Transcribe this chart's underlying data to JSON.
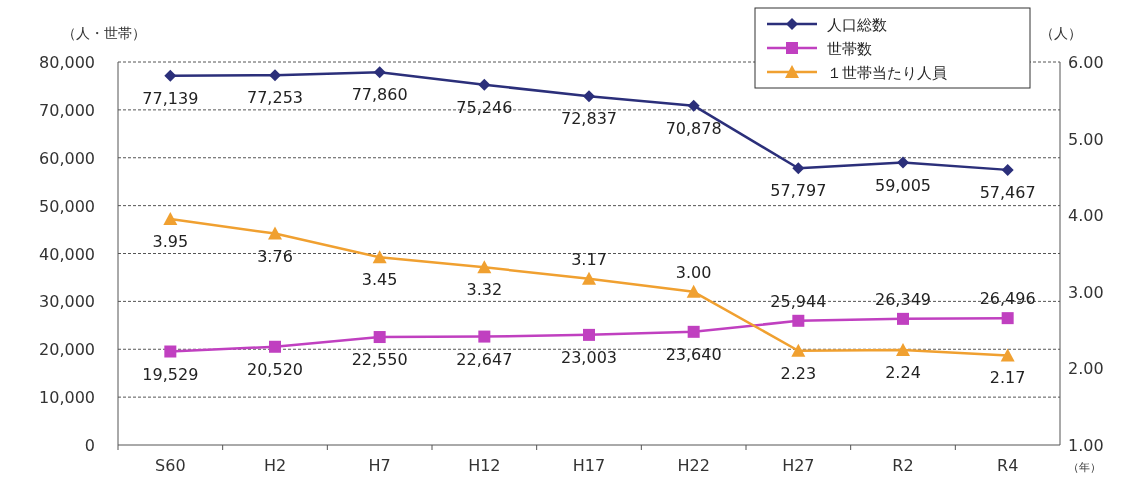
{
  "chart_data": {
    "type": "line",
    "ylabel": "（人・世帯）",
    "y2label": "（人）",
    "xlabel": "（年）",
    "categories": [
      "S60",
      "H2",
      "H7",
      "H12",
      "H17",
      "H22",
      "H27",
      "R2",
      "R4"
    ],
    "series": [
      {
        "name": "人口総数",
        "color": "#2b2f7a",
        "marker": "diamond",
        "values": [
          77139,
          77253,
          77860,
          75246,
          72837,
          70878,
          57797,
          59005,
          57467
        ],
        "value_labels": [
          "77,139",
          "77,253",
          "77,860",
          "75,246",
          "72,837",
          "70,878",
          "57,797",
          "59,005",
          "57,467"
        ]
      },
      {
        "name": "世帯数",
        "color": "#c040c0",
        "marker": "square",
        "values": [
          19529,
          20520,
          22550,
          22647,
          23003,
          23640,
          25944,
          26349,
          26496
        ],
        "value_labels": [
          "19,529",
          "20,520",
          "22,550",
          "22,647",
          "23,003",
          "23,640",
          "25,944",
          "26,349",
          "26,496"
        ]
      },
      {
        "name": "１世帯当たり人員",
        "color": "#f0a030",
        "marker": "triangle",
        "axis": "y2",
        "values": [
          3.95,
          3.76,
          3.45,
          3.32,
          3.17,
          3.0,
          2.23,
          2.24,
          2.17
        ],
        "value_labels": [
          "3.95",
          "3.76",
          "3.45",
          "3.32",
          "3.17",
          "3.00",
          "2.23",
          "2.24",
          "2.17"
        ]
      }
    ],
    "ylim": [
      0,
      80000
    ],
    "yticks": [
      0,
      {
        "value": 10000,
        "label": "10,000"
      },
      {
        "value": 20000,
        "label": "20,000"
      },
      {
        "value": 30000,
        "label": "30,000"
      },
      {
        "value": 40000,
        "label": "40,000"
      },
      {
        "value": 50000,
        "label": "50,000"
      },
      {
        "value": 60000,
        "label": "60,000"
      },
      {
        "value": 70000,
        "label": "70,000"
      },
      {
        "value": 80000,
        "label": "80,000"
      }
    ],
    "y2lim": [
      1,
      6
    ],
    "y2ticks": [
      {
        "value": 1,
        "label": "1.00"
      },
      {
        "value": 2,
        "label": "2.00"
      },
      {
        "value": 3,
        "label": "3.00"
      },
      {
        "value": 4,
        "label": "4.00"
      },
      {
        "value": 5,
        "label": "5.00"
      },
      {
        "value": 6,
        "label": "6.00"
      }
    ],
    "grid": "y",
    "legend": "top right"
  }
}
